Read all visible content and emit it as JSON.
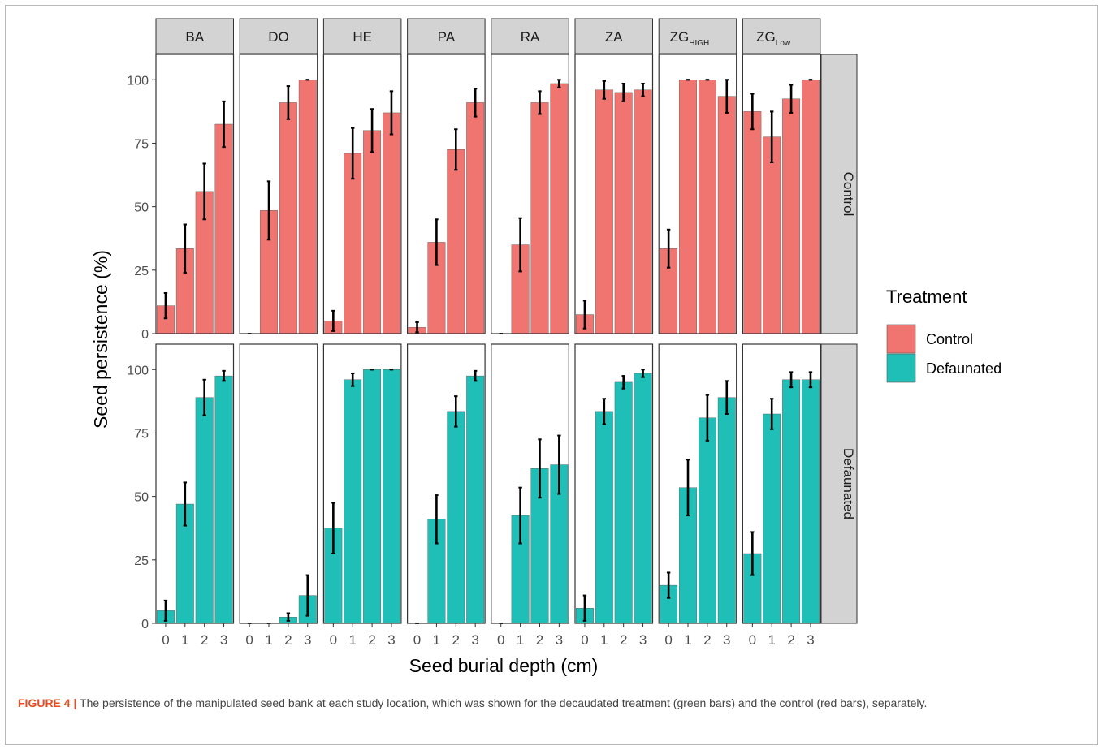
{
  "caption": {
    "label": "FIGURE 4 |",
    "text": "The persistence of the manipulated seed bank at each study location, which was shown for the decaudated treatment (green bars) and the control (red bars), separately."
  },
  "colors": {
    "Control": "#f07470",
    "Defaunated": "#1fbfb8",
    "strip": "#d3d3d3"
  },
  "chart_data": {
    "type": "bar",
    "xlabel": "Seed burial depth (cm)",
    "ylabel": "Seed persistence (%)",
    "ylim": [
      0,
      110
    ],
    "yticks": [
      0,
      25,
      50,
      75,
      100
    ],
    "categories": [
      "0",
      "1",
      "2",
      "3"
    ],
    "grid": false,
    "legend": {
      "title": "Treatment",
      "position": "right",
      "entries": [
        "Control",
        "Defaunated"
      ]
    },
    "row_labels": [
      "Control",
      "Defaunated"
    ],
    "facets": [
      {
        "label": "BA",
        "sub": "",
        "Control": {
          "values": [
            11,
            33.5,
            56,
            82.5
          ],
          "errors": [
            5,
            9.5,
            11,
            9
          ]
        },
        "Defaunated": {
          "values": [
            5,
            47,
            89,
            97.5
          ],
          "errors": [
            4,
            8.5,
            7,
            2
          ]
        }
      },
      {
        "label": "DO",
        "sub": "",
        "Control": {
          "values": [
            0,
            48.5,
            91,
            100
          ],
          "errors": [
            0,
            11.5,
            6.5,
            0
          ]
        },
        "Defaunated": {
          "values": [
            0,
            0,
            2.5,
            11
          ],
          "errors": [
            0,
            0,
            1.5,
            8
          ]
        }
      },
      {
        "label": "HE",
        "sub": "",
        "Control": {
          "values": [
            5,
            71,
            80,
            87
          ],
          "errors": [
            4,
            10,
            8.5,
            8.5
          ]
        },
        "Defaunated": {
          "values": [
            37.5,
            96,
            100,
            100
          ],
          "errors": [
            10,
            2.5,
            0,
            0
          ]
        }
      },
      {
        "label": "PA",
        "sub": "",
        "Control": {
          "values": [
            2.5,
            36,
            72.5,
            91
          ],
          "errors": [
            2,
            9,
            8,
            5.5
          ]
        },
        "Defaunated": {
          "values": [
            0,
            41,
            83.5,
            97.5
          ],
          "errors": [
            0,
            9.5,
            6,
            2
          ]
        }
      },
      {
        "label": "RA",
        "sub": "",
        "Control": {
          "values": [
            0,
            35,
            91,
            98.5
          ],
          "errors": [
            0,
            10.5,
            4.5,
            1.5
          ]
        },
        "Defaunated": {
          "values": [
            0,
            42.5,
            61,
            62.5
          ],
          "errors": [
            0,
            11,
            11.5,
            11.5
          ]
        }
      },
      {
        "label": "ZA",
        "sub": "",
        "Control": {
          "values": [
            7.5,
            96,
            95,
            96
          ],
          "errors": [
            5.5,
            3.5,
            3.5,
            2.5
          ]
        },
        "Defaunated": {
          "values": [
            6,
            83.5,
            95,
            98.5
          ],
          "errors": [
            5,
            5,
            2.5,
            1.5
          ]
        }
      },
      {
        "label": "ZG",
        "sub": "HIGH",
        "Control": {
          "values": [
            33.5,
            100,
            100,
            93.5
          ],
          "errors": [
            7.5,
            0,
            0,
            6.5
          ]
        },
        "Defaunated": {
          "values": [
            15,
            53.5,
            81,
            89
          ],
          "errors": [
            5,
            11,
            9,
            6.5
          ]
        }
      },
      {
        "label": "ZG",
        "sub": "Low",
        "Control": {
          "values": [
            87.5,
            77.5,
            92.5,
            100
          ],
          "errors": [
            7,
            10,
            5.5,
            0
          ]
        },
        "Defaunated": {
          "values": [
            27.5,
            82.5,
            96,
            96
          ],
          "errors": [
            8.5,
            6,
            3,
            3
          ]
        }
      }
    ]
  }
}
